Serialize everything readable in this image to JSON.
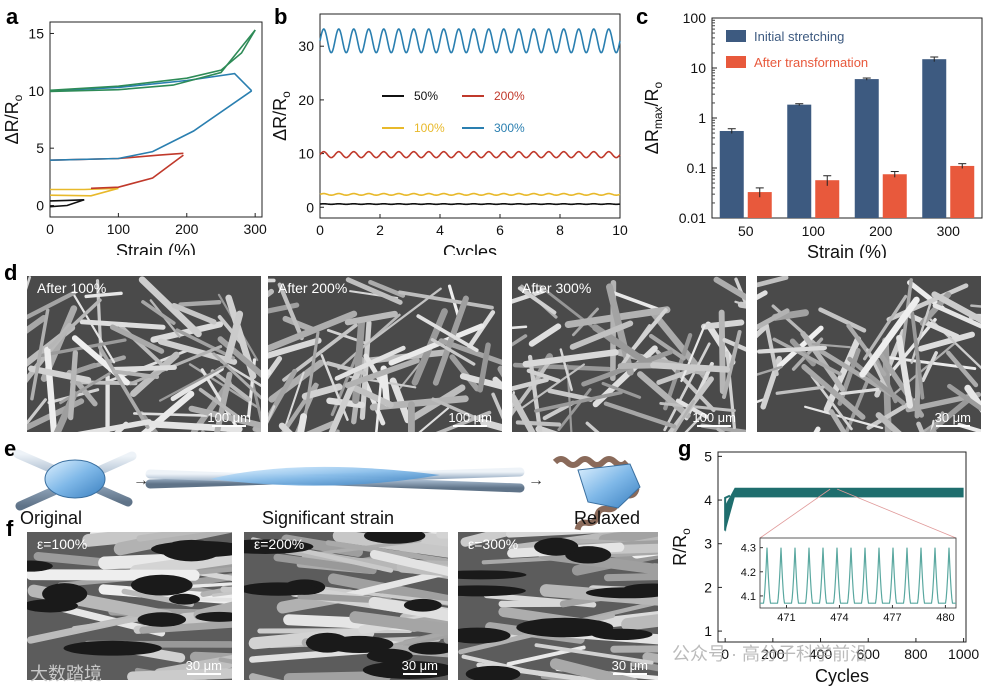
{
  "panels": {
    "a": "a",
    "b": "b",
    "c": "c",
    "d": "d",
    "e": "e",
    "f": "f",
    "g": "g"
  },
  "chart_data": [
    {
      "id": "a",
      "type": "line",
      "xlabel": "Strain (%)",
      "ylabel": "ΔR/R",
      "ylabel_sub": "o",
      "xticks": [
        "0",
        "100",
        "200",
        "300"
      ],
      "yticks": [
        "0",
        "5",
        "10",
        "15"
      ],
      "xlim": [
        0,
        310
      ],
      "ylim": [
        -1,
        16
      ],
      "series": [
        {
          "color": "#111111",
          "loading": [
            [
              0,
              0.4
            ],
            [
              25,
              0.45
            ],
            [
              50,
              0.5
            ]
          ],
          "unloading": [
            [
              50,
              0.5
            ],
            [
              25,
              0.0
            ],
            [
              0,
              -0.1
            ]
          ]
        },
        {
          "color": "#e8b92b",
          "loading": [
            [
              0,
              1.4
            ],
            [
              50,
              1.4
            ],
            [
              100,
              1.5
            ]
          ],
          "unloading": [
            [
              100,
              1.5
            ],
            [
              60,
              0.85
            ],
            [
              0,
              0.9
            ]
          ]
        },
        {
          "color": "#c0392b",
          "loading": [
            [
              0,
              3.95
            ],
            [
              100,
              4.1
            ],
            [
              160,
              4.4
            ],
            [
              195,
              4.55
            ]
          ],
          "unloading": [
            [
              195,
              4.4
            ],
            [
              150,
              2.4
            ],
            [
              100,
              1.6
            ],
            [
              60,
              1.5
            ]
          ]
        },
        {
          "color": "#2a7fb0",
          "loading": [
            [
              0,
              10
            ],
            [
              100,
              10.3
            ],
            [
              200,
              10.9
            ],
            [
              270,
              11.5
            ],
            [
              295,
              10.0
            ]
          ],
          "unloading": [
            [
              295,
              10.0
            ],
            [
              210,
              6.5
            ],
            [
              150,
              4.7
            ],
            [
              100,
              4.1
            ],
            [
              0,
              3.95
            ]
          ]
        },
        {
          "color": "#2e8b57",
          "loading": [
            [
              0,
              10.05
            ],
            [
              100,
              10.4
            ],
            [
              200,
              11.1
            ],
            [
              250,
              11.8
            ],
            [
              280,
              13.3
            ],
            [
              300,
              15.3
            ]
          ],
          "unloading": [
            [
              300,
              15.3
            ],
            [
              250,
              11.6
            ],
            [
              180,
              10.5
            ],
            [
              100,
              10.1
            ],
            [
              0,
              9.95
            ]
          ]
        }
      ]
    },
    {
      "id": "b",
      "type": "line",
      "xlabel": "Cycles",
      "ylabel": "ΔR/R",
      "ylabel_sub": "o",
      "xticks": [
        "0",
        "2",
        "4",
        "6",
        "8",
        "10"
      ],
      "yticks": [
        "0",
        "10",
        "20",
        "30"
      ],
      "xlim": [
        0,
        10
      ],
      "ylim": [
        -2,
        36
      ],
      "legend": [
        {
          "name": "50%",
          "color": "#111111"
        },
        {
          "name": "200%",
          "color": "#c0392b"
        },
        {
          "name": "100%",
          "color": "#e8b92b"
        },
        {
          "name": "300%",
          "color": "#2a7fb0"
        }
      ],
      "series": [
        {
          "name": "50%",
          "color": "#111111",
          "base": 0.6,
          "amp": 0.05,
          "cycles": 20
        },
        {
          "name": "100%",
          "color": "#e8b92b",
          "base": 2.4,
          "amp": 0.15,
          "cycles": 20
        },
        {
          "name": "200%",
          "color": "#c0392b",
          "base": 9.8,
          "amp": 0.55,
          "cycles": 20
        },
        {
          "name": "300%",
          "color": "#2a7fb0",
          "base": 31,
          "amp": 2.2,
          "cycles": 20
        }
      ]
    },
    {
      "id": "c",
      "type": "bar",
      "xlabel": "Strain (%)",
      "ylabel": "ΔR",
      "ylabel_sub": "max",
      "ylabel_rest": "/R",
      "ylabel_sub2": "o",
      "yscale": "log",
      "ylim": [
        0.01,
        100
      ],
      "yticks": [
        "0.01",
        "0.1",
        "1",
        "10",
        "100"
      ],
      "categories": [
        "50",
        "100",
        "200",
        "300"
      ],
      "series": [
        {
          "name": "Initial stretching",
          "color": "#3d5a80",
          "values": [
            0.55,
            1.85,
            6.0,
            15.0
          ],
          "errors": [
            0.06,
            0.08,
            0.3,
            1.6
          ]
        },
        {
          "name": "After transformation",
          "color": "#e8593c",
          "values": [
            0.033,
            0.057,
            0.075,
            0.11
          ],
          "errors": [
            0.007,
            0.013,
            0.01,
            0.012
          ]
        }
      ]
    },
    {
      "id": "g",
      "type": "line",
      "xlabel": "Cycles",
      "ylabel": "R/R",
      "ylabel_sub": "o",
      "xticks": [
        "0",
        "200",
        "400",
        "600",
        "800",
        "1000"
      ],
      "yticks": [
        "1",
        "2",
        "3",
        "4",
        "5"
      ],
      "xlim": [
        -30,
        1010
      ],
      "ylim": [
        0.75,
        5.1
      ],
      "band": {
        "color": "#1f6e6e",
        "low": 4.06,
        "high": 4.28
      },
      "inset": {
        "xticks": [
          "471",
          "474",
          "477",
          "480"
        ],
        "yticks": [
          "4.1",
          "4.2",
          "4.3"
        ],
        "xlim": [
          469.5,
          480.6
        ],
        "ylim": [
          4.05,
          4.34
        ],
        "peaks": 14,
        "color": "#5aa8a0"
      }
    }
  ],
  "sem_d": [
    {
      "caption": "After 100%",
      "scale": "100 μm"
    },
    {
      "caption": "After 200%",
      "scale": "100 μm"
    },
    {
      "caption": "After 300%",
      "scale": "100 μm"
    },
    {
      "caption": "",
      "scale": "30 μm"
    }
  ],
  "sem_f": [
    {
      "caption": "ε=100%",
      "scale": "30 μm"
    },
    {
      "caption": "ε=200%",
      "scale": "30 μm"
    },
    {
      "caption": "ε=300%",
      "scale": "30 μm"
    }
  ],
  "panel_e": {
    "original": "Original",
    "strain": "Significant strain",
    "relaxed": "Relaxed"
  },
  "watermark": {
    "left": "大数踏境",
    "right": "公众号 · 高分子科学前沿"
  }
}
